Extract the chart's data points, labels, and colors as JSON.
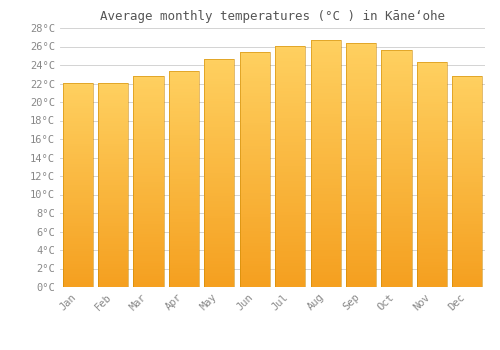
{
  "title": "Average monthly temperatures (°C ) in Kāneʻohe",
  "months": [
    "Jan",
    "Feb",
    "Mar",
    "Apr",
    "May",
    "Jun",
    "Jul",
    "Aug",
    "Sep",
    "Oct",
    "Nov",
    "Dec"
  ],
  "values": [
    22.1,
    22.1,
    22.8,
    23.4,
    24.7,
    25.4,
    26.1,
    26.7,
    26.4,
    25.6,
    24.3,
    22.8
  ],
  "bar_color_bottom": "#F5A020",
  "bar_color_top": "#FFD060",
  "bar_edge_color": "#CC8800",
  "background_color": "#ffffff",
  "grid_color": "#cccccc",
  "ylim": [
    0,
    28
  ],
  "yticks": [
    0,
    2,
    4,
    6,
    8,
    10,
    12,
    14,
    16,
    18,
    20,
    22,
    24,
    26,
    28
  ],
  "title_fontsize": 9,
  "tick_fontsize": 7.5,
  "tick_color": "#888888",
  "title_color": "#555555",
  "bar_width": 0.85,
  "figsize": [
    5.0,
    3.5
  ],
  "dpi": 100
}
